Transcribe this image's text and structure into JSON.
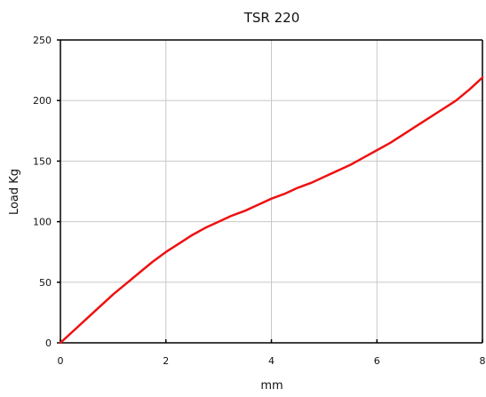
{
  "chart_data": {
    "type": "line",
    "title": "TSR 220",
    "xlabel": "mm",
    "ylabel": "Load Kg",
    "xlim": [
      0,
      8
    ],
    "ylim": [
      0,
      250
    ],
    "x_ticks": [
      0,
      2,
      4,
      6,
      8
    ],
    "y_ticks": [
      0,
      50,
      100,
      150,
      200,
      250
    ],
    "grid": true,
    "series": [
      {
        "name": "",
        "color": "#ee1111",
        "x": [
          0,
          0.25,
          0.5,
          0.75,
          1,
          1.25,
          1.5,
          1.75,
          2,
          2.25,
          2.5,
          2.75,
          3,
          3.25,
          3.5,
          3.75,
          4,
          4.25,
          4.5,
          4.75,
          5,
          5.25,
          5.5,
          5.75,
          6,
          6.25,
          6.5,
          6.75,
          7,
          7.25,
          7.5,
          7.75,
          8
        ],
        "y": [
          0,
          10,
          20,
          30,
          40,
          49,
          58,
          67,
          75,
          82,
          89,
          95,
          100,
          105,
          109,
          114,
          119,
          123,
          128,
          132,
          137,
          142,
          147,
          153,
          159,
          165,
          172,
          179,
          186,
          193,
          200,
          209,
          219
        ]
      }
    ]
  }
}
